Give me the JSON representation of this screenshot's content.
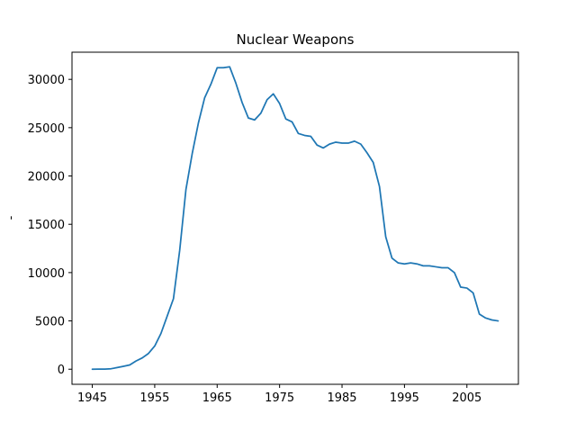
{
  "chart_data": {
    "type": "line",
    "title": "Nuclear Weapons",
    "xlabel": "",
    "ylabel": "-",
    "xlim": [
      1941.75,
      2013.25
    ],
    "ylim": [
      -1562,
      32812
    ],
    "x_ticks": [
      1945,
      1955,
      1965,
      1975,
      1985,
      1995,
      2005
    ],
    "y_ticks": [
      0,
      5000,
      10000,
      15000,
      20000,
      25000,
      30000
    ],
    "grid": false,
    "series": [
      {
        "color": "#1f77b4",
        "x": [
          1945,
          1946,
          1947,
          1948,
          1949,
          1950,
          1951,
          1952,
          1953,
          1954,
          1955,
          1956,
          1957,
          1958,
          1959,
          1960,
          1961,
          1962,
          1963,
          1964,
          1965,
          1966,
          1967,
          1968,
          1969,
          1970,
          1971,
          1972,
          1973,
          1974,
          1975,
          1976,
          1977,
          1978,
          1979,
          1980,
          1981,
          1982,
          1983,
          1984,
          1985,
          1986,
          1987,
          1988,
          1989,
          1990,
          1991,
          1992,
          1993,
          1994,
          1995,
          1996,
          1997,
          1998,
          1999,
          2000,
          2001,
          2002,
          2003,
          2004,
          2005,
          2006,
          2007,
          2008,
          2009,
          2010
        ],
        "values": [
          2,
          9,
          13,
          50,
          170,
          300,
          440,
          850,
          1170,
          1630,
          2400,
          3700,
          5500,
          7300,
          12300,
          18600,
          22300,
          25500,
          28100,
          29500,
          31200,
          31200,
          31300,
          29600,
          27600,
          26000,
          25800,
          26500,
          27900,
          28500,
          27500,
          25900,
          25600,
          24400,
          24200,
          24100,
          23200,
          22900,
          23300,
          23500,
          23400,
          23400,
          23600,
          23300,
          22400,
          21400,
          18900,
          13700,
          11500,
          11000,
          10900,
          11000,
          10900,
          10700,
          10700,
          10600,
          10500,
          10500,
          10000,
          8500,
          8400,
          7900,
          5700,
          5300,
          5100,
          5000
        ]
      }
    ]
  }
}
